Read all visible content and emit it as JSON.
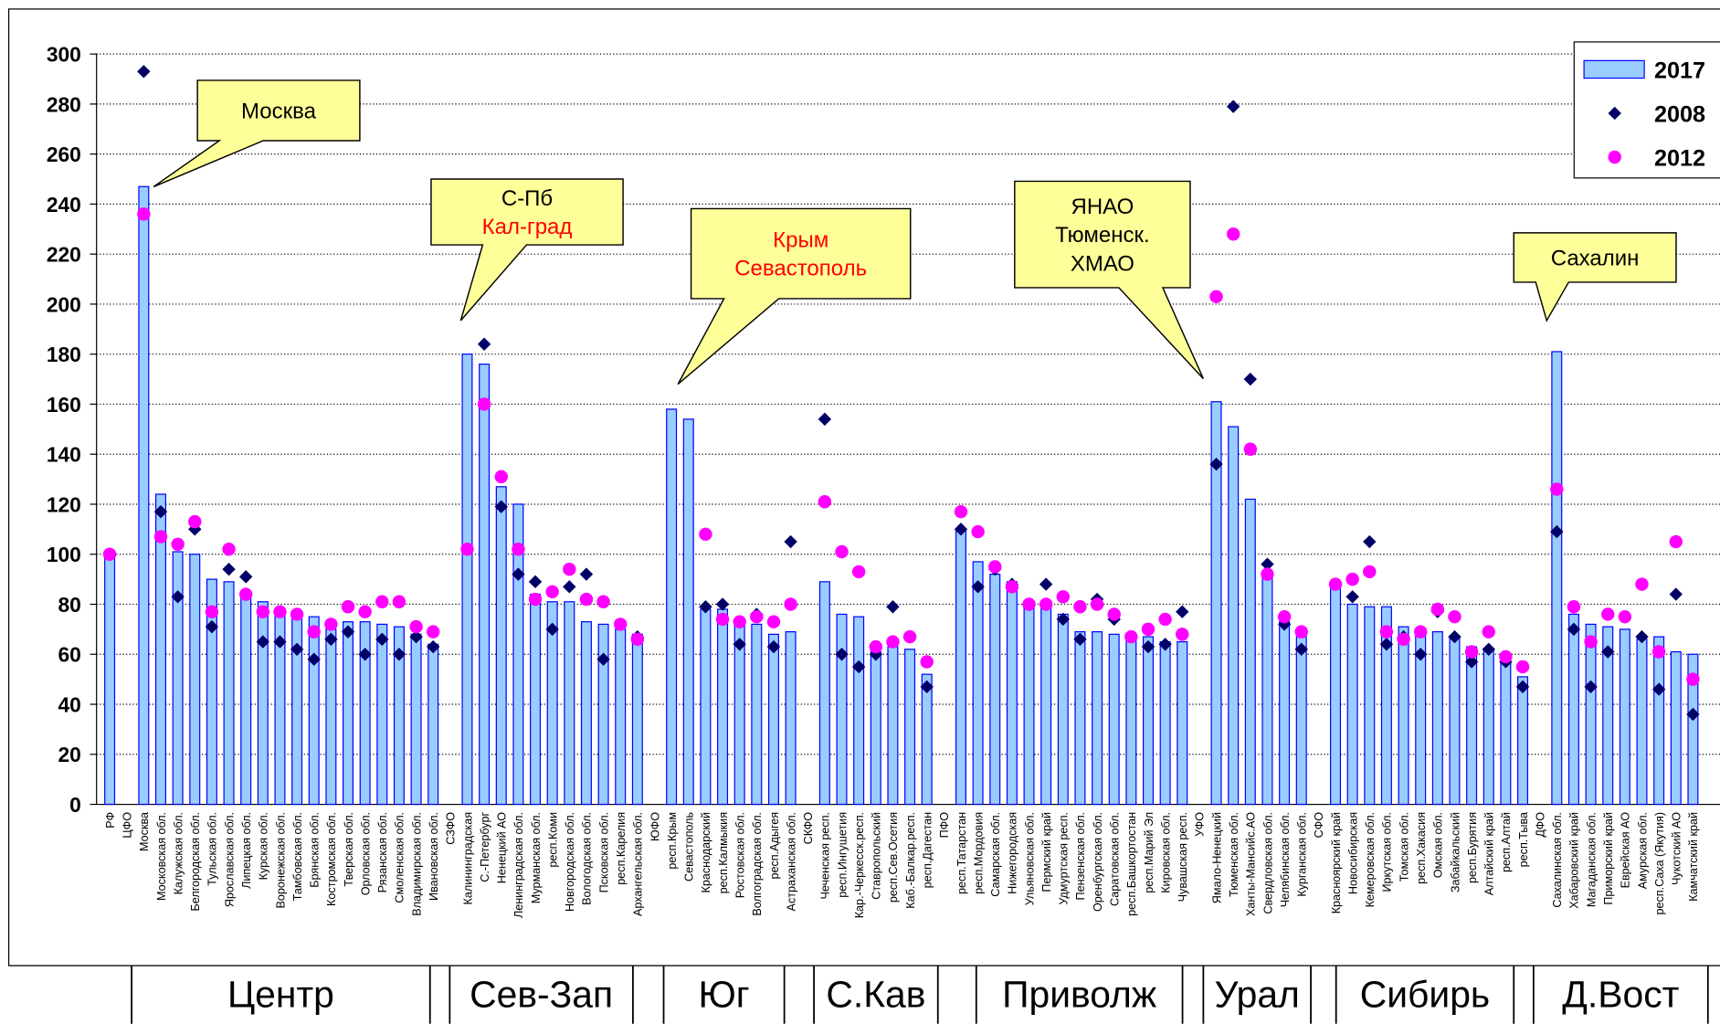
{
  "chart_data": {
    "type": "bar",
    "categories": [
      "РФ",
      "ЦФО",
      "Москва",
      "Московская обл.",
      "Калужская обл.",
      "Белгородская обл.",
      "Тульская обл.",
      "Ярославская обл.",
      "Липецкая обл.",
      "Курская обл.",
      "Воронежская обл.",
      "Тамбовская обл.",
      "Брянская обл.",
      "Костромская обл.",
      "Тверская обл.",
      "Орловская обл.",
      "Рязанская обл.",
      "Смоленская обл.",
      "Владимирская обл.",
      "Ивановская обл.",
      "СЗФО",
      "Калининградская",
      "С.-Петербург",
      "Ненецкий АО",
      "Ленинградская обл.",
      "Мурманская обл.",
      "респ.Коми",
      "Новгородская обл.",
      "Вологодская обл.",
      "Псковская обл.",
      "респ.Карелия",
      "Архангельская обл.",
      "ЮФО",
      "респ.Крым",
      "Севастополь",
      "Краснодарский",
      "респ.Калмыкия",
      "Ростовская обл.",
      "Волгоградская обл.",
      "респ.Адыгея",
      "Астраханская обл.",
      "СКФО",
      "Чеченская респ.",
      "респ.Ингушетия",
      "Кар.-Черкесск.респ.",
      "Ставропольский",
      "респ.Сев.Осетия",
      "Каб.-Балкар.респ.",
      "респ.Дагестан",
      "ПФО",
      "респ.Татарстан",
      "респ.Мордовия",
      "Самарская обл.",
      "Нижегородская",
      "Ульяновская обл.",
      "Пермский край",
      "Удмуртская респ.",
      "Пензенская обл.",
      "Оренбургская обл.",
      "Саратовская обл.",
      "респ.Башкортостан",
      "респ.Марий Эл",
      "Кировская обл.",
      "Чувашская респ.",
      "УФО",
      "Ямало-Ненецкий",
      "Тюменская обл.",
      "Ханты-Мансийс.АО",
      "Свердловская обл.",
      "Челябинская обл.",
      "Курганская обл.",
      "СФО",
      "Красноярский край",
      "Новосибирская",
      "Кемеровская обл.",
      "Иркутская обл.",
      "Томская обл.",
      "респ.Хакасия",
      "Омская обл.",
      "Забайкальский",
      "респ.Бурятия",
      "Алтайский край",
      "респ.Алтай",
      "респ.Тыва",
      "ДФО",
      "Сахалинская обл.",
      "Хабаровский край",
      "Магаданская обл.",
      "Приморский край",
      "Еврейская АО",
      "Амурская обл.",
      "респ.Саха (Якутия)",
      "Чукотский АО",
      "Камчатский край"
    ],
    "series": [
      {
        "name": "2017",
        "color": "#99ccff",
        "marker": "bar",
        "values": [
          100,
          null,
          247,
          124,
          101,
          100,
          90,
          89,
          85,
          81,
          78,
          77,
          75,
          70,
          73,
          73,
          72,
          71,
          68,
          64,
          null,
          180,
          176,
          127,
          120,
          84,
          81,
          81,
          73,
          72,
          70,
          68,
          null,
          158,
          154,
          78,
          78,
          72,
          72,
          68,
          69,
          null,
          89,
          76,
          75,
          61,
          63,
          62,
          52,
          null,
          110,
          97,
          92,
          89,
          81,
          80,
          76,
          69,
          69,
          68,
          67,
          67,
          65,
          65,
          null,
          161,
          151,
          122,
          93,
          73,
          67,
          null,
          88,
          80,
          79,
          79,
          71,
          69,
          69,
          67,
          63,
          62,
          57,
          51,
          null,
          181,
          76,
          72,
          71,
          70,
          66,
          67,
          61,
          60
        ]
      },
      {
        "name": "2008",
        "color": "#000066",
        "marker": "diamond",
        "values": [
          100,
          null,
          293,
          117,
          83,
          110,
          71,
          94,
          91,
          65,
          65,
          62,
          58,
          66,
          69,
          60,
          66,
          60,
          67,
          63,
          null,
          null,
          184,
          119,
          92,
          89,
          70,
          87,
          92,
          58,
          72,
          67,
          null,
          null,
          null,
          79,
          80,
          64,
          76,
          63,
          105,
          null,
          154,
          60,
          55,
          60,
          79,
          67,
          47,
          null,
          110,
          87,
          94,
          88,
          80,
          88,
          74,
          66,
          82,
          74,
          67,
          63,
          64,
          77,
          null,
          136,
          279,
          170,
          96,
          72,
          62,
          null,
          88,
          83,
          105,
          64,
          67,
          60,
          77,
          67,
          57,
          62,
          57,
          47,
          null,
          109,
          70,
          47,
          61,
          75,
          67,
          46,
          84,
          36
        ]
      },
      {
        "name": "2012",
        "color": "#ff00ff",
        "marker": "circle",
        "values": [
          100,
          null,
          236,
          107,
          104,
          113,
          77,
          102,
          84,
          77,
          77,
          76,
          69,
          72,
          79,
          77,
          81,
          81,
          71,
          69,
          null,
          102,
          160,
          131,
          102,
          82,
          85,
          94,
          82,
          81,
          72,
          66,
          null,
          null,
          null,
          108,
          74,
          73,
          75,
          73,
          80,
          null,
          121,
          101,
          93,
          63,
          65,
          67,
          57,
          null,
          117,
          109,
          95,
          87,
          80,
          80,
          83,
          79,
          80,
          76,
          67,
          70,
          74,
          68,
          null,
          203,
          228,
          142,
          92,
          75,
          69,
          null,
          88,
          90,
          93,
          69,
          66,
          69,
          78,
          75,
          61,
          69,
          59,
          55,
          null,
          126,
          79,
          65,
          76,
          75,
          88,
          61,
          105,
          50
        ]
      }
    ],
    "ylim": [
      0,
      300
    ],
    "yticks": [
      0,
      20,
      40,
      60,
      80,
      100,
      120,
      140,
      160,
      180,
      200,
      220,
      240,
      260,
      280,
      300
    ],
    "grid": true,
    "legend": "top-right",
    "annotations": [
      {
        "lines": [
          {
            "text": "Москва",
            "color": "#000000"
          }
        ]
      },
      {
        "lines": [
          {
            "text": "С-Пб",
            "color": "#000000"
          },
          {
            "text": "Кал-град",
            "color": "#ff0000"
          }
        ]
      },
      {
        "lines": [
          {
            "text": "Крым",
            "color": "#ff0000"
          },
          {
            "text": "Севастополь",
            "color": "#ff0000"
          }
        ]
      },
      {
        "lines": [
          {
            "text": "ЯНАО",
            "color": "#000000"
          },
          {
            "text": "Тюменск.",
            "color": "#000000"
          },
          {
            "text": "ХМАО",
            "color": "#000000"
          }
        ]
      },
      {
        "lines": [
          {
            "text": "Сахалин",
            "color": "#000000"
          }
        ]
      }
    ],
    "regions": [
      "Центр",
      "Сев-Зап",
      "Юг",
      "С.Кав",
      "Приволж",
      "Урал",
      "Сибирь",
      "Д.Вост"
    ]
  }
}
